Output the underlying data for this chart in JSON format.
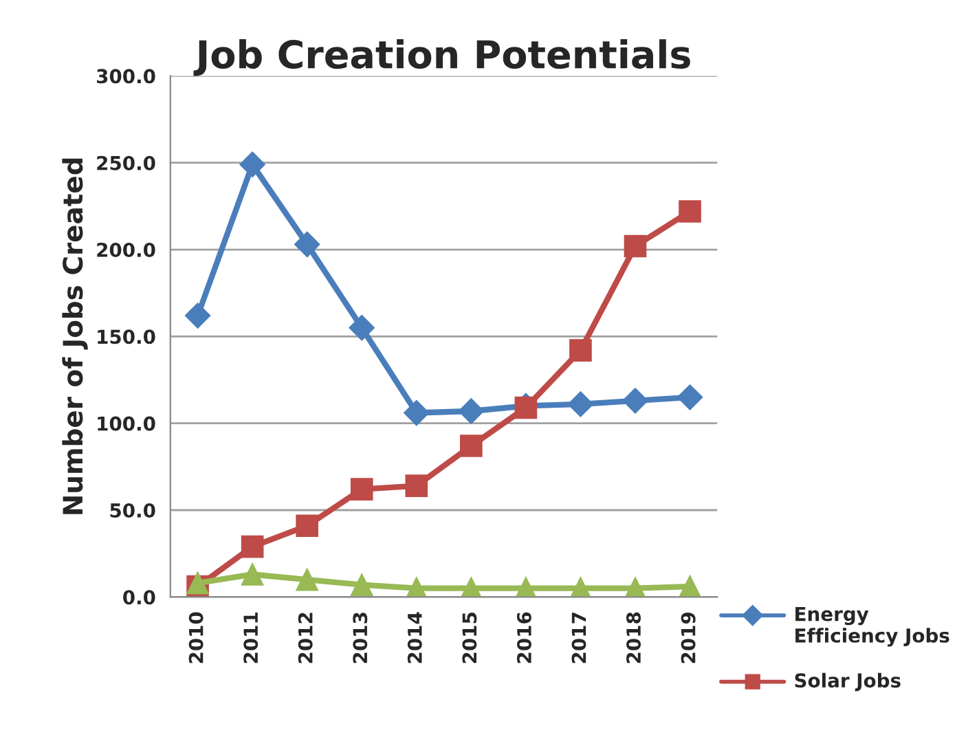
{
  "chart_data": {
    "type": "line",
    "title": "Job Creation Potentials",
    "ylabel": "Number of Jobs Created",
    "categories": [
      "2010",
      "2011",
      "2012",
      "2013",
      "2014",
      "2015",
      "2016",
      "2017",
      "2018",
      "2019"
    ],
    "series": [
      {
        "name": "Energy Efficiency Jobs",
        "color": "#4a7ebb",
        "marker": "diamond",
        "values": [
          162,
          249,
          203,
          155,
          106,
          107,
          110,
          111,
          113,
          115
        ]
      },
      {
        "name": "Solar Jobs",
        "color": "#be4b48",
        "marker": "square",
        "values": [
          6,
          29,
          41,
          62,
          64,
          87,
          109,
          142,
          202,
          222
        ]
      },
      {
        "color": "#98b954",
        "marker": "triangle",
        "values": [
          8,
          13,
          10,
          7,
          5,
          5,
          5,
          5,
          5,
          6
        ]
      }
    ],
    "ylim": [
      0,
      300
    ],
    "yticks": [
      {
        "value": 0,
        "label": "0.0"
      },
      {
        "value": 50,
        "label": "50.0"
      },
      {
        "value": 100,
        "label": "100.0"
      },
      {
        "value": 150,
        "label": "150.0"
      },
      {
        "value": 200,
        "label": "200.0"
      },
      {
        "value": 250,
        "label": "250.0"
      },
      {
        "value": 300,
        "label": "300.0"
      }
    ],
    "grid": "y",
    "legend": "bottom right",
    "line_style": "solid"
  }
}
